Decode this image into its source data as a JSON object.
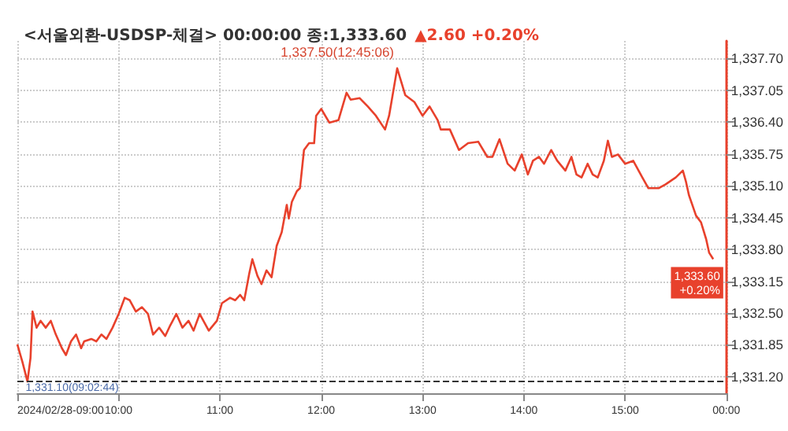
{
  "chart_data": {
    "type": "line",
    "title": "<서울외환-USDSP-체결> 00:00:00 종:1,333.60",
    "subtitle": "▲2.60 +0.20%",
    "x": [
      9.0,
      9.05,
      9.1,
      9.13,
      9.15,
      9.19,
      9.23,
      9.28,
      9.33,
      9.38,
      9.44,
      9.48,
      9.53,
      9.58,
      9.63,
      9.66,
      9.73,
      9.78,
      9.83,
      9.88,
      9.94,
      10.0,
      10.06,
      10.11,
      10.17,
      10.23,
      10.29,
      10.34,
      10.4,
      10.46,
      10.51,
      10.57,
      10.63,
      10.69,
      10.74,
      10.8,
      10.89,
      10.97,
      11.02,
      11.1,
      11.15,
      11.2,
      11.24,
      11.29,
      11.32,
      11.37,
      11.41,
      11.46,
      11.51,
      11.56,
      11.61,
      11.66,
      11.68,
      11.71,
      11.76,
      11.79,
      11.83,
      11.88,
      11.93,
      11.95,
      12.0,
      12.08,
      12.17,
      12.25,
      12.29,
      12.38,
      12.46,
      12.54,
      12.63,
      12.67,
      12.75,
      12.83,
      12.92,
      13.0,
      13.07,
      13.15,
      13.18,
      13.27,
      13.36,
      13.45,
      13.55,
      13.64,
      13.69,
      13.76,
      13.84,
      13.91,
      13.98,
      14.04,
      14.09,
      14.15,
      14.2,
      14.27,
      14.33,
      14.41,
      14.47,
      14.52,
      14.57,
      14.63,
      14.68,
      14.73,
      14.79,
      14.83,
      14.87,
      14.93,
      15.0,
      15.08,
      15.17,
      15.23,
      15.33,
      15.4,
      15.5,
      15.57,
      15.6,
      15.63,
      15.7,
      15.75,
      15.8,
      15.83,
      15.87
    ],
    "series": [
      {
        "color": "#e8412c",
        "values": [
          1331.86,
          1331.5,
          1331.1,
          1331.58,
          1332.53,
          1332.2,
          1332.34,
          1332.2,
          1332.34,
          1332.06,
          1331.78,
          1331.64,
          1331.92,
          1332.06,
          1331.78,
          1331.92,
          1331.97,
          1331.92,
          1332.06,
          1331.97,
          1332.2,
          1332.48,
          1332.81,
          1332.76,
          1332.53,
          1332.62,
          1332.48,
          1332.06,
          1332.2,
          1332.03,
          1332.25,
          1332.48,
          1332.2,
          1332.34,
          1332.14,
          1332.48,
          1332.14,
          1332.34,
          1332.7,
          1332.81,
          1332.76,
          1332.87,
          1332.76,
          1333.31,
          1333.6,
          1333.26,
          1333.09,
          1333.37,
          1333.23,
          1333.87,
          1334.15,
          1334.71,
          1334.43,
          1334.77,
          1334.99,
          1335.05,
          1335.83,
          1335.97,
          1335.97,
          1336.53,
          1336.67,
          1336.39,
          1336.44,
          1337.0,
          1336.86,
          1336.89,
          1336.72,
          1336.53,
          1336.25,
          1336.53,
          1337.5,
          1336.95,
          1336.81,
          1336.53,
          1336.72,
          1336.44,
          1336.25,
          1336.25,
          1335.83,
          1335.97,
          1336.0,
          1335.69,
          1335.69,
          1336.05,
          1335.55,
          1335.41,
          1335.74,
          1335.33,
          1335.61,
          1335.69,
          1335.55,
          1335.83,
          1335.61,
          1335.41,
          1335.69,
          1335.33,
          1335.27,
          1335.55,
          1335.33,
          1335.27,
          1335.61,
          1336.02,
          1335.69,
          1335.74,
          1335.55,
          1335.61,
          1335.27,
          1335.05,
          1335.05,
          1335.13,
          1335.27,
          1335.41,
          1335.19,
          1334.91,
          1334.49,
          1334.35,
          1334.01,
          1333.73,
          1333.6
        ]
      }
    ],
    "xlim": [
      9,
      16
    ],
    "xticks": [
      {
        "value": 9,
        "label": "2024/02/28-09:00"
      },
      {
        "value": 10,
        "label": "10:00"
      },
      {
        "value": 11,
        "label": "11:00"
      },
      {
        "value": 12,
        "label": "12:00"
      },
      {
        "value": 13,
        "label": "13:00"
      },
      {
        "value": 14,
        "label": "14:00"
      },
      {
        "value": 15,
        "label": "15:00"
      },
      {
        "value": 16,
        "label": "00:00"
      }
    ],
    "ylim": [
      1330.86,
      1338.06
    ],
    "yticks": [
      {
        "value": 1331.2,
        "label": "1,331.20"
      },
      {
        "value": 1331.85,
        "label": "1,331.85"
      },
      {
        "value": 1332.5,
        "label": "1,332.50"
      },
      {
        "value": 1333.15,
        "label": "1,333.15"
      },
      {
        "value": 1333.8,
        "label": "1,333.80"
      },
      {
        "value": 1334.45,
        "label": "1,334.45"
      },
      {
        "value": 1335.1,
        "label": "1,335.10"
      },
      {
        "value": 1335.75,
        "label": "1,335.75"
      },
      {
        "value": 1336.4,
        "label": "1,336.40"
      },
      {
        "value": 1337.05,
        "label": "1,337.05"
      },
      {
        "value": 1337.7,
        "label": "1,337.70"
      }
    ],
    "ref_lines": [
      {
        "axis": "y",
        "value": 1331.1,
        "color": "#333333",
        "line_style": "dashed"
      }
    ],
    "annotations": [
      {
        "text": "1,337.50(12:45:06)",
        "x": 12.75,
        "y": 1337.5
      },
      {
        "text": "1,331.10(09:02:44)",
        "x": 9.05,
        "y": 1331.1
      },
      "1,333.60\n+0.20%"
    ],
    "grid": true,
    "marker": "none",
    "line_style": "solid"
  }
}
